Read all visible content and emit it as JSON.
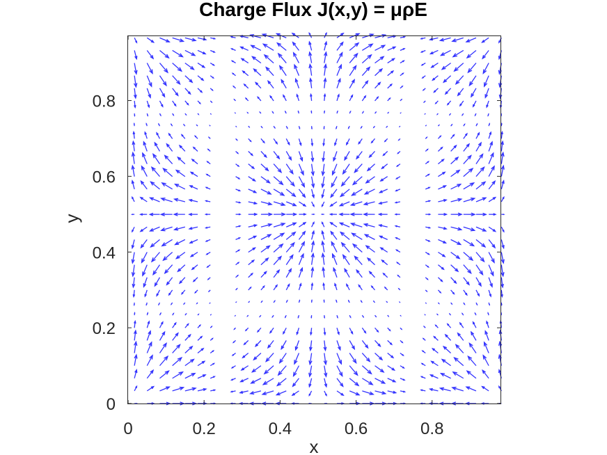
{
  "chart_data": {
    "type": "quiver",
    "title": "Charge Flux J(x,y) = μρE",
    "xlabel": "x",
    "ylabel": "y",
    "xlim": [
      0,
      0.98
    ],
    "ylim": [
      0,
      0.97
    ],
    "xticks": [
      0,
      0.2,
      0.4,
      0.6,
      0.8
    ],
    "xtick_labels": [
      "0",
      "0.2",
      "0.4",
      "0.6",
      "0.8"
    ],
    "yticks": [
      0,
      0.2,
      0.4,
      0.6,
      0.8
    ],
    "ytick_labels": [
      "0",
      "0.2",
      "0.4",
      "0.6",
      "0.8"
    ],
    "grid": false,
    "arrow_color": "#3333ff",
    "field": {
      "description_formula": "J = (cos(2*pi*y)*sin(2*pi*x)*cos(2*pi*x), cos(2*pi*x)*sin(2*pi*y)*cos(2*pi*y))",
      "x_start": 0.0167,
      "x_step": 0.0333,
      "x_count": 30,
      "y_start": 0.0,
      "y_step": 0.0333,
      "y_count": 30,
      "scale": 0.9
    }
  }
}
